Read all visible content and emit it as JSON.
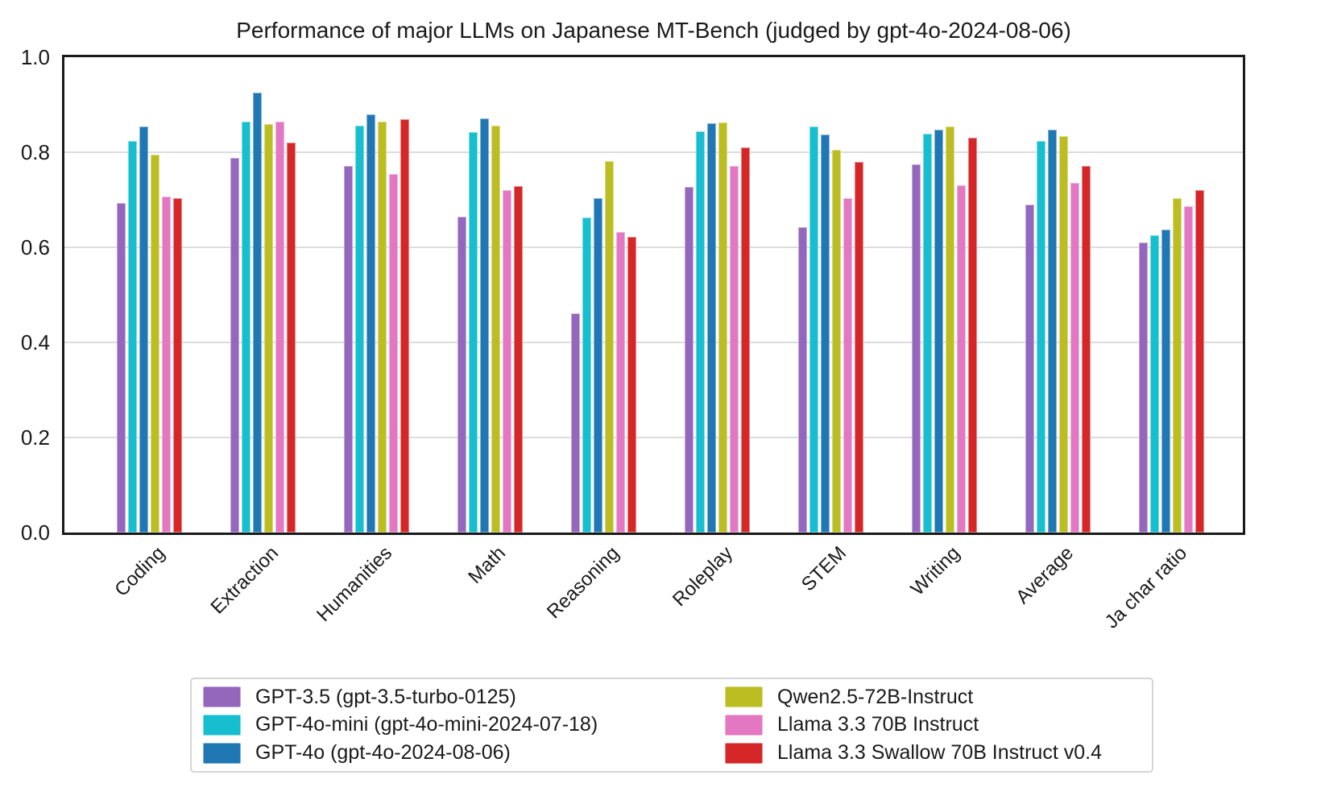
{
  "chart_data": {
    "type": "bar",
    "title": "Performance of major LLMs on Japanese MT-Bench (judged by gpt-4o-2024-08-06)",
    "categories": [
      "Coding",
      "Extraction",
      "Humanities",
      "Math",
      "Reasoning",
      "Roleplay",
      "STEM",
      "Writing",
      "Average",
      "Ja char ratio"
    ],
    "series": [
      {
        "name": "GPT-3.5 (gpt-3.5-turbo-0125)",
        "color": "#9467bd",
        "values": [
          0.693,
          0.788,
          0.772,
          0.664,
          0.461,
          0.727,
          0.642,
          0.775,
          0.69,
          0.61
        ]
      },
      {
        "name": "GPT-4o-mini (gpt-4o-mini-2024-07-18)",
        "color": "#17becf",
        "values": [
          0.824,
          0.864,
          0.856,
          0.843,
          0.663,
          0.844,
          0.855,
          0.839,
          0.823,
          0.625
        ]
      },
      {
        "name": "GPT-4o (gpt-4o-2024-08-06)",
        "color": "#1f77b4",
        "values": [
          0.855,
          0.926,
          0.879,
          0.871,
          0.704,
          0.861,
          0.837,
          0.847,
          0.847,
          0.638
        ]
      },
      {
        "name": "Qwen2.5-72B-Instruct",
        "color": "#bcbd22",
        "values": [
          0.795,
          0.859,
          0.864,
          0.856,
          0.782,
          0.862,
          0.805,
          0.854,
          0.834,
          0.703
        ]
      },
      {
        "name": "Llama 3.3 70B Instruct",
        "color": "#e377c2",
        "values": [
          0.706,
          0.865,
          0.755,
          0.72,
          0.633,
          0.772,
          0.704,
          0.731,
          0.735,
          0.686
        ]
      },
      {
        "name": "Llama 3.3 Swallow 70B Instruct v0.4",
        "color": "#d62728",
        "values": [
          0.704,
          0.82,
          0.87,
          0.729,
          0.622,
          0.81,
          0.78,
          0.831,
          0.772,
          0.72
        ]
      }
    ],
    "xlabel": "",
    "ylabel": "",
    "ylim": [
      0.0,
      1.0
    ],
    "ytick_labels": [
      "0.0",
      "0.2",
      "0.4",
      "0.6",
      "0.8",
      "1.0"
    ],
    "grid": "horizontal",
    "legend_position": "bottom",
    "legend_columns": 2
  }
}
